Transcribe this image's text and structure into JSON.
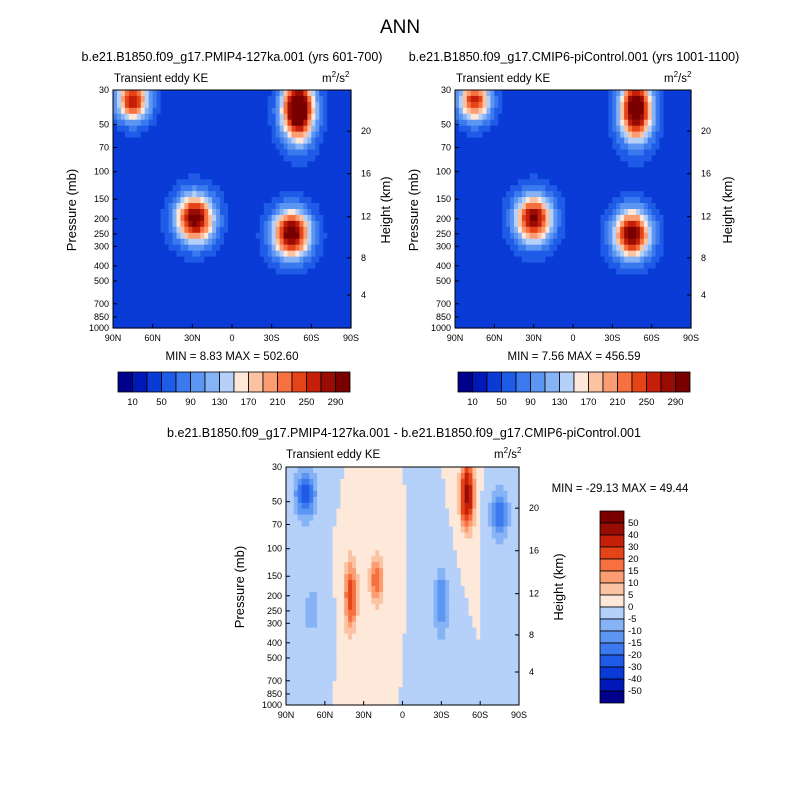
{
  "page_title": "ANN",
  "chart_data": [
    {
      "type": "contour",
      "id": "top-left",
      "title": "b.e21.B1850.f09_g17.PMIP4-127ka.001 (yrs 601-700)",
      "left_label": "Transient eddy KE",
      "units_base": "m",
      "units_exp1": "2",
      "units_mid": "/s",
      "units_exp2": "2",
      "ylabel": "Pressure (mb)",
      "ylabel_right": "Height (km)",
      "xticks": [
        "90N",
        "60N",
        "30N",
        "0",
        "30S",
        "60S",
        "90S"
      ],
      "yticks": [
        "30",
        "50",
        "70",
        "100",
        "150",
        "200",
        "250",
        "300",
        "400",
        "500",
        "700",
        "850",
        "1000"
      ],
      "yticks_right": [
        "20",
        "16",
        "12",
        "8",
        "4"
      ],
      "stats_text": "MIN =  8.83  MAX = 502.60",
      "min": 8.83,
      "max": 502.6,
      "features": [
        {
          "lat": -50,
          "p": 40,
          "amp": 330,
          "w": 12,
          "h": 0.45
        },
        {
          "lat": -45,
          "p": 250,
          "amp": 280,
          "w": 14,
          "h": 0.35
        },
        {
          "lat": 28,
          "p": 200,
          "amp": 270,
          "w": 14,
          "h": 0.35
        },
        {
          "lat": 75,
          "p": 35,
          "amp": 230,
          "w": 12,
          "h": 0.3
        }
      ]
    },
    {
      "type": "contour",
      "id": "top-right",
      "title": "b.e21.B1850.f09_g17.CMIP6-piControl.001 (yrs 1001-1100)",
      "left_label": "Transient eddy KE",
      "units_base": "m",
      "units_exp1": "2",
      "units_mid": "/s",
      "units_exp2": "2",
      "ylabel": "Pressure (mb)",
      "ylabel_right": "Height (km)",
      "xticks": [
        "90N",
        "60N",
        "30N",
        "0",
        "30S",
        "60S",
        "90S"
      ],
      "yticks": [
        "30",
        "50",
        "70",
        "100",
        "150",
        "200",
        "250",
        "300",
        "400",
        "500",
        "700",
        "850",
        "1000"
      ],
      "yticks_right": [
        "20",
        "16",
        "12",
        "8",
        "4"
      ],
      "stats_text": "MIN =  7.56  MAX = 456.59",
      "min": 7.56,
      "max": 456.59,
      "features": [
        {
          "lat": -48,
          "p": 40,
          "amp": 300,
          "w": 12,
          "h": 0.45
        },
        {
          "lat": -45,
          "p": 250,
          "amp": 270,
          "w": 14,
          "h": 0.35
        },
        {
          "lat": 30,
          "p": 200,
          "amp": 255,
          "w": 14,
          "h": 0.35
        },
        {
          "lat": 75,
          "p": 35,
          "amp": 220,
          "w": 12,
          "h": 0.3
        }
      ]
    },
    {
      "type": "contour",
      "id": "bottom-diff",
      "title": "b.e21.B1850.f09_g17.PMIP4-127ka.001 - b.e21.B1850.f09_g17.CMIP6-piControl.001",
      "left_label": "Transient eddy KE",
      "units_base": "m",
      "units_exp1": "2",
      "units_mid": "/s",
      "units_exp2": "2",
      "ylabel": "Pressure (mb)",
      "ylabel_right": "Height (km)",
      "xticks": [
        "90N",
        "60N",
        "30N",
        "0",
        "30S",
        "60S",
        "90S"
      ],
      "yticks": [
        "30",
        "50",
        "70",
        "100",
        "150",
        "200",
        "250",
        "300",
        "400",
        "500",
        "700",
        "850",
        "1000"
      ],
      "yticks_right": [
        "20",
        "16",
        "12",
        "8",
        "4"
      ],
      "stats_text": "MIN = -29.13  MAX =  49.44",
      "min": -29.13,
      "max": 49.44,
      "features": [
        {
          "lat": -50,
          "p": 45,
          "amp": 45,
          "w": 5,
          "h": 0.45
        },
        {
          "lat": 40,
          "p": 200,
          "amp": 25,
          "w": 5,
          "h": 0.5
        },
        {
          "lat": 20,
          "p": 160,
          "amp": 20,
          "w": 5,
          "h": 0.35
        },
        {
          "lat": 75,
          "p": 45,
          "amp": -25,
          "w": 8,
          "h": 0.35
        },
        {
          "lat": -75,
          "p": 60,
          "amp": -18,
          "w": 7,
          "h": 0.4
        },
        {
          "lat": -30,
          "p": 220,
          "amp": -15,
          "w": 6,
          "h": 0.5
        },
        {
          "lat": 70,
          "p": 250,
          "amp": -8,
          "w": 8,
          "h": 0.4
        }
      ]
    }
  ],
  "colorbar_top": {
    "labels": [
      "10",
      "50",
      "90",
      "130",
      "170",
      "210",
      "250",
      "290"
    ],
    "levels": [
      10,
      30,
      50,
      70,
      90,
      110,
      130,
      150,
      170,
      190,
      210,
      230,
      250,
      270,
      290
    ]
  },
  "colorbar_bottom": {
    "labels": [
      "50",
      "40",
      "30",
      "20",
      "15",
      "10",
      "5",
      "0",
      "-5",
      "-10",
      "-15",
      "-20",
      "-30",
      "-40",
      "-50"
    ],
    "levels": [
      -50,
      -40,
      -30,
      -20,
      -15,
      -10,
      -5,
      0,
      5,
      10,
      15,
      20,
      30,
      40,
      50
    ]
  },
  "colors": {
    "palette": [
      "#00008a",
      "#0018b8",
      "#0a3bd6",
      "#1e5be6",
      "#3b79ee",
      "#5d96f2",
      "#86b2f6",
      "#b5d0f9",
      "#e4eefc",
      "#fde8da",
      "#fcc3a3",
      "#fb9c72",
      "#f6713f",
      "#e54418",
      "#c51f0a",
      "#990c04",
      "#7a0000"
    ]
  }
}
